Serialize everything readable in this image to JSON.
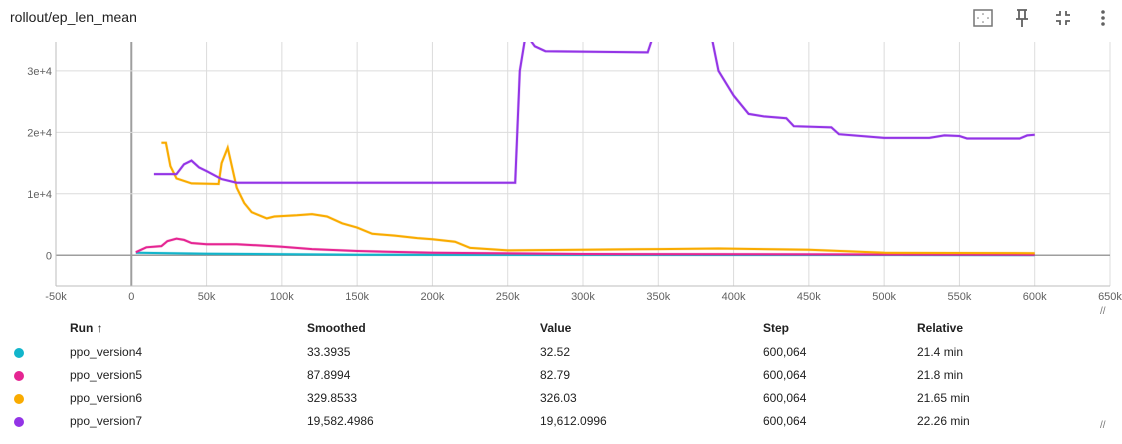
{
  "title": "rollout/ep_len_mean",
  "toolbar": {
    "icons": [
      "fit-domain-icon",
      "pin-icon",
      "collapse-icon",
      "more-vert-icon"
    ]
  },
  "chart_data": {
    "type": "line",
    "title": "rollout/ep_len_mean",
    "xlim": [
      -50000,
      650000
    ],
    "ylim": [
      -5000,
      34700
    ],
    "x_ticks": [
      -50000,
      0,
      50000,
      100000,
      150000,
      200000,
      250000,
      300000,
      350000,
      400000,
      450000,
      500000,
      550000,
      600000,
      650000
    ],
    "x_tick_labels": [
      "-50k",
      "0",
      "50k",
      "100k",
      "150k",
      "200k",
      "250k",
      "300k",
      "350k",
      "400k",
      "450k",
      "500k",
      "550k",
      "600k",
      "650k"
    ],
    "y_ticks": [
      0,
      10000,
      20000,
      30000
    ],
    "y_tick_labels": [
      "0",
      "1e+4",
      "2e+4",
      "3e+4"
    ],
    "grid": true,
    "series": [
      {
        "name": "ppo_version4",
        "color": "#12b5cb",
        "x": [
          3000,
          50000,
          150000,
          300000,
          600000
        ],
        "y": [
          400,
          250,
          100,
          60,
          33
        ]
      },
      {
        "name": "ppo_version5",
        "color": "#e52592",
        "x": [
          3000,
          10000,
          20000,
          24000,
          30000,
          35000,
          40000,
          50000,
          70000,
          100000,
          120000,
          150000,
          200000,
          300000,
          600000
        ],
        "y": [
          500,
          1300,
          1500,
          2300,
          2700,
          2500,
          2000,
          1800,
          1800,
          1400,
          1000,
          700,
          400,
          200,
          88
        ]
      },
      {
        "name": "ppo_version6",
        "color": "#f9ab00",
        "x": [
          20000,
          23000,
          26000,
          30000,
          40000,
          58000,
          60000,
          64000,
          70000,
          75000,
          80000,
          90000,
          95000,
          110000,
          120000,
          130000,
          140000,
          150000,
          160000,
          175000,
          190000,
          200000,
          215000,
          225000,
          250000,
          300000,
          350000,
          390000,
          450000,
          500000,
          600000
        ],
        "y": [
          18300,
          18300,
          14500,
          12500,
          11700,
          11600,
          15000,
          17500,
          11000,
          8500,
          7000,
          6000,
          6300,
          6500,
          6700,
          6300,
          5200,
          4500,
          3500,
          3200,
          2800,
          2600,
          2200,
          1200,
          800,
          900,
          1000,
          1100,
          900,
          400,
          330
        ]
      },
      {
        "name": "ppo_version7",
        "color": "#9334e6",
        "x": [
          15000,
          30000,
          35000,
          40000,
          45000,
          50000,
          60000,
          70000,
          255000,
          258000,
          262000,
          268000,
          275000,
          343000,
          347000,
          360000,
          385000,
          390000,
          400000,
          410000,
          420000,
          435000,
          440000,
          465000,
          470000,
          500000,
          530000,
          540000,
          550000,
          555000,
          590000,
          595000,
          600000
        ],
        "y": [
          13200,
          13200,
          14800,
          15400,
          14300,
          13700,
          12400,
          11800,
          11800,
          30000,
          36000,
          34000,
          33200,
          33000,
          36000,
          40000,
          36000,
          30000,
          26000,
          23000,
          22600,
          22300,
          21000,
          20800,
          19700,
          19100,
          19100,
          19500,
          19400,
          19000,
          19000,
          19500,
          19600
        ]
      }
    ]
  },
  "table": {
    "headers": [
      "Run ↑",
      "Smoothed",
      "Value",
      "Step",
      "Relative"
    ],
    "rows": [
      {
        "color": "#12b5cb",
        "cells": [
          "ppo_version4",
          "33.3935",
          "32.52",
          "600,064",
          "21.4 min"
        ]
      },
      {
        "color": "#e52592",
        "cells": [
          "ppo_version5",
          "87.8994",
          "82.79",
          "600,064",
          "21.8 min"
        ]
      },
      {
        "color": "#f9ab00",
        "cells": [
          "ppo_version6",
          "329.8533",
          "326.03",
          "600,064",
          "21.65 min"
        ]
      },
      {
        "color": "#9334e6",
        "cells": [
          "ppo_version7",
          "19,582.4986",
          "19,612.0996",
          "600,064",
          "22.26 min"
        ]
      }
    ]
  }
}
